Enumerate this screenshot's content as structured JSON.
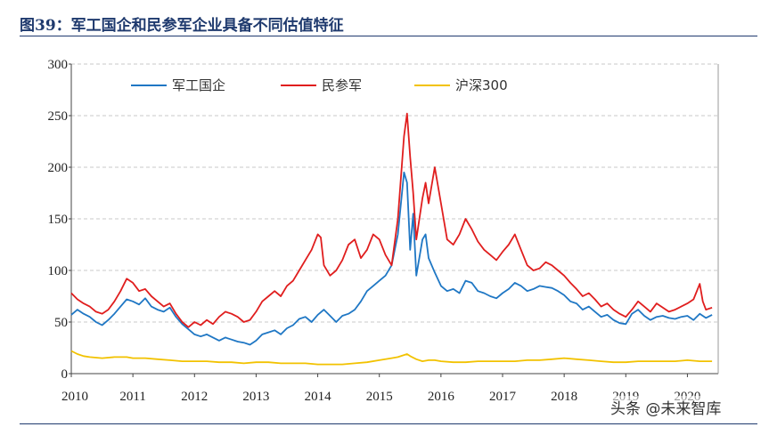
{
  "title": "图39：军工国企和民参军企业具备不同估值特征",
  "watermark": "头条 @未来智库",
  "chart_data": {
    "type": "line",
    "title": "图39：军工国企和民参军企业具备不同估值特征",
    "xlabel": "",
    "ylabel": "",
    "xlim": [
      2010.0,
      2020.5
    ],
    "ylim": [
      0,
      300
    ],
    "yticks": [
      0,
      50,
      100,
      150,
      200,
      250,
      300
    ],
    "xticks": [
      2010,
      2011,
      2012,
      2013,
      2014,
      2015,
      2016,
      2017,
      2018,
      2019,
      2020
    ],
    "grid": "horizontal-dashed",
    "legend_position": "top",
    "series": [
      {
        "name": "军工国企",
        "color": "#1f77c4",
        "points": [
          [
            2010.0,
            57
          ],
          [
            2010.1,
            62
          ],
          [
            2010.2,
            58
          ],
          [
            2010.3,
            55
          ],
          [
            2010.4,
            50
          ],
          [
            2010.5,
            47
          ],
          [
            2010.6,
            52
          ],
          [
            2010.7,
            58
          ],
          [
            2010.8,
            65
          ],
          [
            2010.9,
            72
          ],
          [
            2011.0,
            70
          ],
          [
            2011.1,
            67
          ],
          [
            2011.2,
            73
          ],
          [
            2011.3,
            65
          ],
          [
            2011.4,
            62
          ],
          [
            2011.5,
            60
          ],
          [
            2011.6,
            64
          ],
          [
            2011.7,
            55
          ],
          [
            2011.8,
            48
          ],
          [
            2011.9,
            43
          ],
          [
            2012.0,
            38
          ],
          [
            2012.1,
            36
          ],
          [
            2012.2,
            38
          ],
          [
            2012.3,
            35
          ],
          [
            2012.4,
            32
          ],
          [
            2012.5,
            35
          ],
          [
            2012.6,
            33
          ],
          [
            2012.7,
            31
          ],
          [
            2012.8,
            30
          ],
          [
            2012.9,
            28
          ],
          [
            2013.0,
            32
          ],
          [
            2013.1,
            38
          ],
          [
            2013.2,
            40
          ],
          [
            2013.3,
            42
          ],
          [
            2013.4,
            38
          ],
          [
            2013.5,
            44
          ],
          [
            2013.6,
            47
          ],
          [
            2013.7,
            53
          ],
          [
            2013.8,
            55
          ],
          [
            2013.9,
            50
          ],
          [
            2014.0,
            57
          ],
          [
            2014.1,
            62
          ],
          [
            2014.2,
            56
          ],
          [
            2014.3,
            50
          ],
          [
            2014.4,
            56
          ],
          [
            2014.5,
            58
          ],
          [
            2014.6,
            62
          ],
          [
            2014.7,
            70
          ],
          [
            2014.8,
            80
          ],
          [
            2014.9,
            85
          ],
          [
            2015.0,
            90
          ],
          [
            2015.1,
            95
          ],
          [
            2015.2,
            105
          ],
          [
            2015.3,
            135
          ],
          [
            2015.4,
            195
          ],
          [
            2015.45,
            185
          ],
          [
            2015.5,
            120
          ],
          [
            2015.55,
            155
          ],
          [
            2015.6,
            95
          ],
          [
            2015.7,
            130
          ],
          [
            2015.75,
            135
          ],
          [
            2015.8,
            112
          ],
          [
            2015.9,
            98
          ],
          [
            2016.0,
            85
          ],
          [
            2016.1,
            80
          ],
          [
            2016.2,
            82
          ],
          [
            2016.3,
            78
          ],
          [
            2016.4,
            90
          ],
          [
            2016.5,
            88
          ],
          [
            2016.6,
            80
          ],
          [
            2016.7,
            78
          ],
          [
            2016.8,
            75
          ],
          [
            2016.9,
            73
          ],
          [
            2017.0,
            78
          ],
          [
            2017.1,
            82
          ],
          [
            2017.2,
            88
          ],
          [
            2017.3,
            85
          ],
          [
            2017.4,
            80
          ],
          [
            2017.5,
            82
          ],
          [
            2017.6,
            85
          ],
          [
            2017.7,
            84
          ],
          [
            2017.8,
            83
          ],
          [
            2017.9,
            80
          ],
          [
            2018.0,
            76
          ],
          [
            2018.1,
            70
          ],
          [
            2018.2,
            68
          ],
          [
            2018.3,
            62
          ],
          [
            2018.4,
            65
          ],
          [
            2018.5,
            60
          ],
          [
            2018.6,
            55
          ],
          [
            2018.7,
            57
          ],
          [
            2018.8,
            52
          ],
          [
            2018.9,
            49
          ],
          [
            2019.0,
            48
          ],
          [
            2019.1,
            58
          ],
          [
            2019.2,
            62
          ],
          [
            2019.3,
            56
          ],
          [
            2019.4,
            52
          ],
          [
            2019.5,
            55
          ],
          [
            2019.6,
            56
          ],
          [
            2019.7,
            54
          ],
          [
            2019.8,
            53
          ],
          [
            2019.9,
            55
          ],
          [
            2020.0,
            56
          ],
          [
            2020.1,
            52
          ],
          [
            2020.2,
            58
          ],
          [
            2020.3,
            54
          ],
          [
            2020.4,
            57
          ]
        ]
      },
      {
        "name": "民参军",
        "color": "#e01e1e",
        "points": [
          [
            2010.0,
            78
          ],
          [
            2010.1,
            72
          ],
          [
            2010.2,
            68
          ],
          [
            2010.3,
            65
          ],
          [
            2010.4,
            60
          ],
          [
            2010.5,
            58
          ],
          [
            2010.6,
            62
          ],
          [
            2010.7,
            70
          ],
          [
            2010.8,
            80
          ],
          [
            2010.9,
            92
          ],
          [
            2011.0,
            88
          ],
          [
            2011.1,
            80
          ],
          [
            2011.2,
            82
          ],
          [
            2011.3,
            75
          ],
          [
            2011.4,
            70
          ],
          [
            2011.5,
            65
          ],
          [
            2011.6,
            68
          ],
          [
            2011.7,
            58
          ],
          [
            2011.8,
            50
          ],
          [
            2011.9,
            45
          ],
          [
            2012.0,
            50
          ],
          [
            2012.1,
            47
          ],
          [
            2012.2,
            52
          ],
          [
            2012.3,
            48
          ],
          [
            2012.4,
            55
          ],
          [
            2012.5,
            60
          ],
          [
            2012.6,
            58
          ],
          [
            2012.7,
            55
          ],
          [
            2012.8,
            50
          ],
          [
            2012.9,
            52
          ],
          [
            2013.0,
            60
          ],
          [
            2013.1,
            70
          ],
          [
            2013.2,
            75
          ],
          [
            2013.3,
            80
          ],
          [
            2013.4,
            75
          ],
          [
            2013.5,
            85
          ],
          [
            2013.6,
            90
          ],
          [
            2013.7,
            100
          ],
          [
            2013.8,
            110
          ],
          [
            2013.9,
            120
          ],
          [
            2014.0,
            135
          ],
          [
            2014.05,
            132
          ],
          [
            2014.1,
            105
          ],
          [
            2014.2,
            95
          ],
          [
            2014.3,
            100
          ],
          [
            2014.4,
            110
          ],
          [
            2014.5,
            125
          ],
          [
            2014.6,
            130
          ],
          [
            2014.7,
            112
          ],
          [
            2014.8,
            120
          ],
          [
            2014.9,
            135
          ],
          [
            2015.0,
            130
          ],
          [
            2015.1,
            115
          ],
          [
            2015.2,
            105
          ],
          [
            2015.3,
            150
          ],
          [
            2015.4,
            230
          ],
          [
            2015.45,
            252
          ],
          [
            2015.5,
            210
          ],
          [
            2015.55,
            175
          ],
          [
            2015.6,
            130
          ],
          [
            2015.7,
            170
          ],
          [
            2015.75,
            185
          ],
          [
            2015.8,
            165
          ],
          [
            2015.9,
            200
          ],
          [
            2016.0,
            165
          ],
          [
            2016.1,
            130
          ],
          [
            2016.2,
            125
          ],
          [
            2016.3,
            135
          ],
          [
            2016.4,
            150
          ],
          [
            2016.5,
            140
          ],
          [
            2016.6,
            128
          ],
          [
            2016.7,
            120
          ],
          [
            2016.8,
            115
          ],
          [
            2016.9,
            110
          ],
          [
            2017.0,
            118
          ],
          [
            2017.1,
            125
          ],
          [
            2017.2,
            135
          ],
          [
            2017.3,
            120
          ],
          [
            2017.4,
            105
          ],
          [
            2017.5,
            100
          ],
          [
            2017.6,
            102
          ],
          [
            2017.7,
            108
          ],
          [
            2017.8,
            105
          ],
          [
            2017.9,
            100
          ],
          [
            2018.0,
            95
          ],
          [
            2018.1,
            88
          ],
          [
            2018.2,
            82
          ],
          [
            2018.3,
            75
          ],
          [
            2018.4,
            78
          ],
          [
            2018.5,
            72
          ],
          [
            2018.6,
            65
          ],
          [
            2018.7,
            68
          ],
          [
            2018.8,
            62
          ],
          [
            2018.9,
            58
          ],
          [
            2019.0,
            55
          ],
          [
            2019.1,
            62
          ],
          [
            2019.2,
            70
          ],
          [
            2019.3,
            65
          ],
          [
            2019.4,
            60
          ],
          [
            2019.5,
            68
          ],
          [
            2019.6,
            64
          ],
          [
            2019.7,
            60
          ],
          [
            2019.8,
            62
          ],
          [
            2019.9,
            65
          ],
          [
            2020.0,
            68
          ],
          [
            2020.1,
            72
          ],
          [
            2020.2,
            87
          ],
          [
            2020.25,
            70
          ],
          [
            2020.3,
            62
          ],
          [
            2020.4,
            64
          ]
        ]
      },
      {
        "name": "沪深300",
        "color": "#f2c200",
        "points": [
          [
            2010.0,
            22
          ],
          [
            2010.1,
            19
          ],
          [
            2010.2,
            17
          ],
          [
            2010.3,
            16
          ],
          [
            2010.5,
            15
          ],
          [
            2010.7,
            16
          ],
          [
            2010.9,
            16
          ],
          [
            2011.0,
            15
          ],
          [
            2011.2,
            15
          ],
          [
            2011.4,
            14
          ],
          [
            2011.6,
            13
          ],
          [
            2011.8,
            12
          ],
          [
            2012.0,
            12
          ],
          [
            2012.2,
            12
          ],
          [
            2012.4,
            11
          ],
          [
            2012.6,
            11
          ],
          [
            2012.8,
            10
          ],
          [
            2013.0,
            11
          ],
          [
            2013.2,
            11
          ],
          [
            2013.4,
            10
          ],
          [
            2013.6,
            10
          ],
          [
            2013.8,
            10
          ],
          [
            2014.0,
            9
          ],
          [
            2014.2,
            9
          ],
          [
            2014.4,
            9
          ],
          [
            2014.6,
            10
          ],
          [
            2014.8,
            11
          ],
          [
            2015.0,
            13
          ],
          [
            2015.2,
            15
          ],
          [
            2015.3,
            16
          ],
          [
            2015.45,
            19
          ],
          [
            2015.5,
            17
          ],
          [
            2015.6,
            14
          ],
          [
            2015.7,
            12
          ],
          [
            2015.8,
            13
          ],
          [
            2015.9,
            13
          ],
          [
            2016.0,
            12
          ],
          [
            2016.2,
            11
          ],
          [
            2016.4,
            11
          ],
          [
            2016.6,
            12
          ],
          [
            2016.8,
            12
          ],
          [
            2017.0,
            12
          ],
          [
            2017.2,
            12
          ],
          [
            2017.4,
            13
          ],
          [
            2017.6,
            13
          ],
          [
            2017.8,
            14
          ],
          [
            2018.0,
            15
          ],
          [
            2018.2,
            14
          ],
          [
            2018.4,
            13
          ],
          [
            2018.6,
            12
          ],
          [
            2018.8,
            11
          ],
          [
            2019.0,
            11
          ],
          [
            2019.2,
            12
          ],
          [
            2019.4,
            12
          ],
          [
            2019.6,
            12
          ],
          [
            2019.8,
            12
          ],
          [
            2020.0,
            13
          ],
          [
            2020.2,
            12
          ],
          [
            2020.4,
            12
          ]
        ]
      }
    ]
  }
}
